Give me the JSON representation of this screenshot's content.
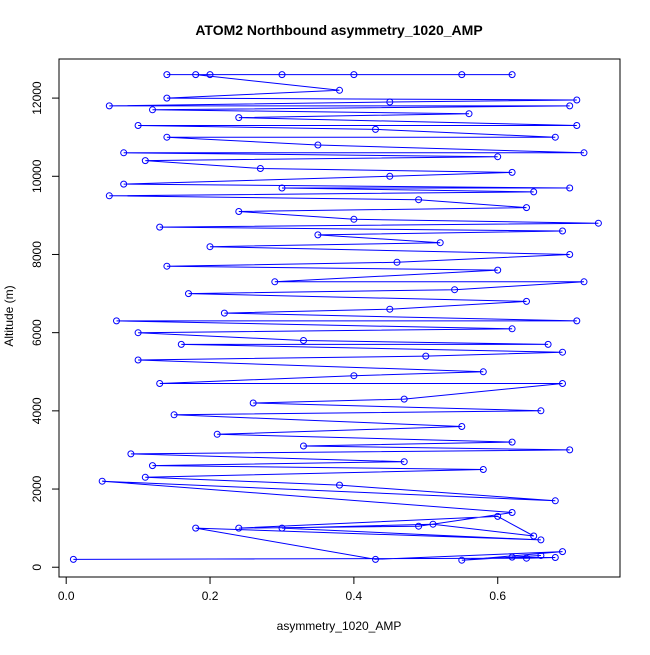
{
  "chart_data": {
    "type": "line",
    "title": "ATOM2 Northbound asymmetry_1020_AMP",
    "xlabel": "asymmetry_1020_AMP",
    "ylabel": "Altitude (m)",
    "xlim": [
      -0.01,
      0.77
    ],
    "ylim": [
      -250,
      13000
    ],
    "x_ticks": [
      0.0,
      0.2,
      0.4,
      0.6
    ],
    "x_tick_labels": [
      "0.0",
      "0.2",
      "0.4",
      "0.6"
    ],
    "y_ticks": [
      0,
      2000,
      4000,
      6000,
      8000,
      10000,
      12000
    ],
    "y_tick_labels": [
      "0",
      "2000",
      "4000",
      "6000",
      "8000",
      "10000",
      "12000"
    ],
    "grid": false,
    "series": [
      {
        "color": "#0000ff",
        "marker": "open-circle",
        "points": [
          [
            0.01,
            200
          ],
          [
            0.64,
            230
          ],
          [
            0.68,
            250
          ],
          [
            0.62,
            260
          ],
          [
            0.66,
            300
          ],
          [
            0.55,
            180
          ],
          [
            0.69,
            400
          ],
          [
            0.43,
            200
          ],
          [
            0.18,
            1000
          ],
          [
            0.66,
            700
          ],
          [
            0.3,
            1000
          ],
          [
            0.51,
            1100
          ],
          [
            0.65,
            800
          ],
          [
            0.6,
            1300
          ],
          [
            0.24,
            1000
          ],
          [
            0.49,
            1050
          ],
          [
            0.62,
            1400
          ],
          [
            0.05,
            2200
          ],
          [
            0.68,
            1700
          ],
          [
            0.38,
            2100
          ],
          [
            0.11,
            2300
          ],
          [
            0.58,
            2500
          ],
          [
            0.12,
            2600
          ],
          [
            0.47,
            2700
          ],
          [
            0.09,
            2900
          ],
          [
            0.7,
            3000
          ],
          [
            0.33,
            3100
          ],
          [
            0.62,
            3200
          ],
          [
            0.21,
            3400
          ],
          [
            0.55,
            3600
          ],
          [
            0.15,
            3900
          ],
          [
            0.66,
            4000
          ],
          [
            0.26,
            4200
          ],
          [
            0.47,
            4300
          ],
          [
            0.69,
            4700
          ],
          [
            0.13,
            4700
          ],
          [
            0.4,
            4900
          ],
          [
            0.58,
            5000
          ],
          [
            0.1,
            5300
          ],
          [
            0.5,
            5400
          ],
          [
            0.69,
            5500
          ],
          [
            0.16,
            5700
          ],
          [
            0.67,
            5700
          ],
          [
            0.33,
            5800
          ],
          [
            0.1,
            6000
          ],
          [
            0.62,
            6100
          ],
          [
            0.07,
            6300
          ],
          [
            0.71,
            6300
          ],
          [
            0.22,
            6500
          ],
          [
            0.45,
            6600
          ],
          [
            0.64,
            6800
          ],
          [
            0.17,
            7000
          ],
          [
            0.54,
            7100
          ],
          [
            0.72,
            7300
          ],
          [
            0.29,
            7300
          ],
          [
            0.6,
            7600
          ],
          [
            0.14,
            7700
          ],
          [
            0.46,
            7800
          ],
          [
            0.7,
            8000
          ],
          [
            0.2,
            8200
          ],
          [
            0.52,
            8300
          ],
          [
            0.35,
            8500
          ],
          [
            0.69,
            8600
          ],
          [
            0.13,
            8700
          ],
          [
            0.74,
            8800
          ],
          [
            0.4,
            8900
          ],
          [
            0.24,
            9100
          ],
          [
            0.64,
            9200
          ],
          [
            0.49,
            9400
          ],
          [
            0.06,
            9500
          ],
          [
            0.65,
            9600
          ],
          [
            0.3,
            9700
          ],
          [
            0.7,
            9700
          ],
          [
            0.08,
            9800
          ],
          [
            0.45,
            10000
          ],
          [
            0.62,
            10100
          ],
          [
            0.27,
            10200
          ],
          [
            0.11,
            10400
          ],
          [
            0.6,
            10500
          ],
          [
            0.08,
            10600
          ],
          [
            0.72,
            10600
          ],
          [
            0.35,
            10800
          ],
          [
            0.14,
            11000
          ],
          [
            0.68,
            11000
          ],
          [
            0.43,
            11200
          ],
          [
            0.1,
            11300
          ],
          [
            0.71,
            11300
          ],
          [
            0.24,
            11500
          ],
          [
            0.56,
            11600
          ],
          [
            0.12,
            11700
          ],
          [
            0.7,
            11800
          ],
          [
            0.06,
            11800
          ],
          [
            0.45,
            11900
          ],
          [
            0.71,
            11950
          ],
          [
            0.14,
            12000
          ],
          [
            0.38,
            12200
          ],
          [
            0.18,
            12600
          ],
          [
            0.4,
            12600
          ],
          [
            0.55,
            12600
          ],
          [
            0.62,
            12600
          ],
          [
            0.2,
            12600
          ],
          [
            0.3,
            12600
          ],
          [
            0.14,
            12600
          ]
        ]
      }
    ]
  }
}
